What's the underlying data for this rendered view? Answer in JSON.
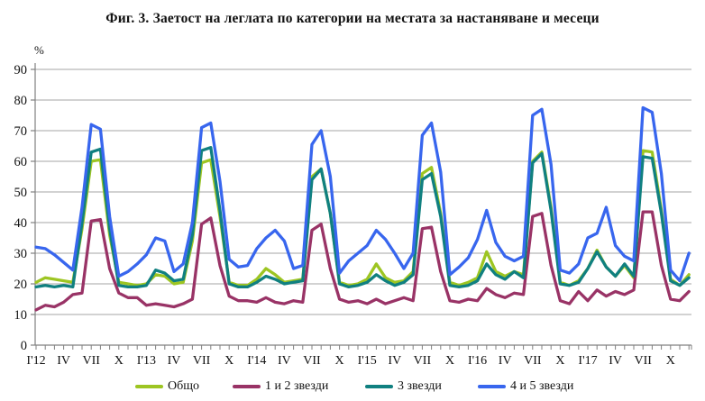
{
  "title": "Фиг. 3. Заетост на леглата по категории на местата за настаняване и месеци",
  "chart_data": {
    "type": "line",
    "grid": "horizontal",
    "legend_position": "bottom",
    "y_axis": {
      "unit_label": "%",
      "min": 0,
      "max": 90,
      "tick_step": 10,
      "ticks": [
        0,
        10,
        20,
        30,
        40,
        50,
        60,
        70,
        80,
        90
      ]
    },
    "x_axis": {
      "months_total": 72,
      "label_every_n_months": 3,
      "tick_labels": [
        "I'12",
        "IV",
        "VII",
        "X",
        "I'13",
        "IV",
        "VII",
        "X",
        "I'14",
        "IV",
        "VII",
        "X",
        "I'15",
        "IV",
        "VII",
        "X",
        "I'16",
        "IV",
        "VII",
        "X",
        "I'17",
        "IV",
        "VII",
        "X"
      ]
    },
    "series": [
      {
        "name": "Общо",
        "color": "#9DC522",
        "values": [
          20.5,
          22,
          21.5,
          21,
          20.5,
          38,
          60,
          60.5,
          36,
          20.5,
          20,
          19.5,
          20,
          23,
          22.5,
          20,
          20.5,
          34,
          59.5,
          60.5,
          42,
          20.5,
          19.5,
          19.5,
          21.5,
          25,
          23,
          20.5,
          21,
          21.5,
          55,
          57.5,
          43,
          20.5,
          19.5,
          20,
          21.5,
          26.5,
          22,
          20.5,
          21,
          24,
          56,
          58,
          43,
          20.5,
          19.5,
          20.5,
          22,
          30.5,
          24,
          22.5,
          24,
          23,
          60,
          63,
          45,
          20.5,
          19.5,
          21,
          25,
          31,
          25.5,
          22.5,
          26,
          22,
          63.5,
          63,
          44,
          21.5,
          19.5,
          23
        ]
      },
      {
        "name": "1 и 2 звезди",
        "color": "#993366",
        "values": [
          11.5,
          13,
          12.5,
          14,
          16.5,
          17,
          40.5,
          41,
          25,
          17,
          15.5,
          15.5,
          13,
          13.5,
          13,
          12.5,
          13.5,
          15,
          39.5,
          41.5,
          26,
          16,
          14.5,
          14.5,
          14,
          15.5,
          14,
          13.5,
          14.5,
          14,
          37.5,
          39.5,
          25,
          15,
          14,
          14.5,
          13.5,
          15,
          13.5,
          14.5,
          15.5,
          14.5,
          38,
          38.5,
          24,
          14.5,
          14,
          15,
          14.5,
          18.5,
          16.5,
          15.5,
          17,
          16.5,
          42,
          43,
          26,
          14.5,
          13.5,
          17.5,
          14.5,
          18,
          16,
          17.5,
          16.5,
          18,
          43.5,
          43.5,
          26,
          15,
          14.5,
          17.5
        ]
      },
      {
        "name": "3 звезди",
        "color": "#108080",
        "values": [
          19,
          19.5,
          19,
          19.5,
          19,
          40,
          63,
          64,
          38,
          19.5,
          19,
          19,
          19.5,
          24.5,
          23.5,
          21,
          21.5,
          36,
          63.5,
          64.5,
          44,
          20,
          19,
          19,
          20.5,
          22.5,
          21.5,
          20,
          20.5,
          21,
          54,
          57.5,
          43,
          20,
          19,
          19.5,
          20.5,
          23,
          21,
          19.5,
          20.5,
          23,
          54,
          56,
          42,
          19.5,
          19,
          19.5,
          21,
          26.5,
          23,
          21.5,
          24,
          22,
          59.5,
          62.5,
          44,
          20,
          19.5,
          20.5,
          25,
          30.5,
          25.5,
          22.5,
          26.5,
          22.5,
          61.5,
          61,
          43,
          21,
          19.5,
          22
        ]
      },
      {
        "name": "4 и 5 звезди",
        "color": "#3866EE",
        "values": [
          32,
          31.5,
          29.5,
          27,
          24.5,
          45,
          72,
          70.5,
          42,
          22.5,
          24,
          26.5,
          29.5,
          35,
          34,
          24,
          26.5,
          40,
          71,
          72.5,
          53.5,
          28,
          25.5,
          26,
          31.5,
          35,
          37.5,
          34,
          25,
          26,
          65.5,
          70,
          55,
          23.5,
          27.5,
          30,
          32.5,
          37.5,
          34.5,
          30,
          25,
          30,
          68.5,
          72.5,
          56.5,
          23,
          25.5,
          28.5,
          34.5,
          44,
          33.5,
          29,
          27.5,
          29,
          75,
          77,
          59,
          24.5,
          23.5,
          26.5,
          35,
          36.5,
          45,
          32.5,
          29,
          27.5,
          77.5,
          76,
          56,
          24.5,
          21,
          30
        ]
      }
    ],
    "style": {
      "gridline_color": "#A6A6A6",
      "axis_color": "#808080",
      "text_color": "#111111"
    }
  }
}
